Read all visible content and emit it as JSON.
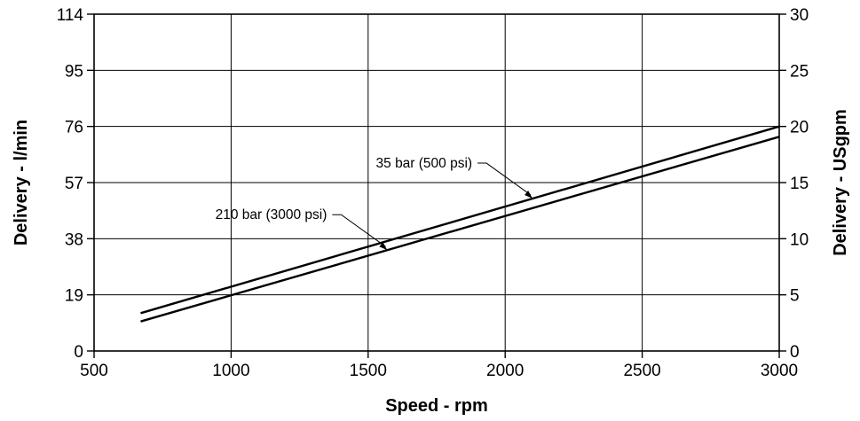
{
  "chart_data": {
    "type": "line",
    "title": "",
    "xlabel": "Speed - rpm",
    "ylabel": "Delivery - l/min",
    "ylabel_right": "Delivery - USgpm",
    "xlim": [
      500,
      3000
    ],
    "ylim": [
      0,
      114
    ],
    "ylim_right": [
      0,
      30
    ],
    "x_ticks": [
      "500",
      "1000",
      "1500",
      "2000",
      "2500",
      "3000"
    ],
    "y_ticks": [
      "0",
      "19",
      "38",
      "57",
      "76",
      "95",
      "114"
    ],
    "y_ticks_right": [
      "0",
      "5",
      "10",
      "15",
      "20",
      "25",
      "30"
    ],
    "grid": true,
    "series": [
      {
        "name": "35 bar (500 psi)",
        "x": [
          670,
          3000
        ],
        "y": [
          12.8,
          76.0
        ]
      },
      {
        "name": "210 bar (3000 psi)",
        "x": [
          670,
          3000
        ],
        "y": [
          10.0,
          72.5
        ]
      }
    ],
    "annotations": [
      {
        "text": "35 bar (500 psi)",
        "series": 0,
        "x": 2100
      },
      {
        "text": "210 bar (3000 psi)",
        "series": 1,
        "x": 1570
      }
    ],
    "colors": {
      "line": "#000000",
      "grid": "#000000",
      "background": "#ffffff"
    }
  }
}
